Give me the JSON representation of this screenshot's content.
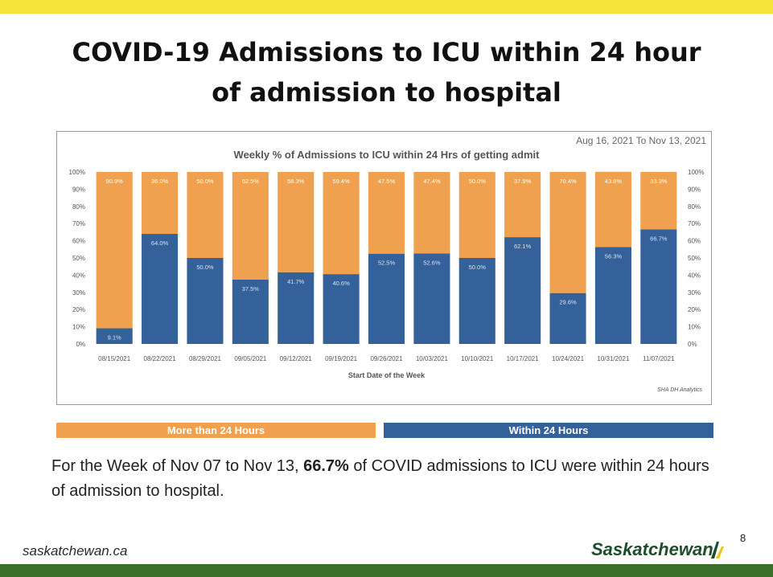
{
  "colors": {
    "top_bar": "#f5e23a",
    "bottom_bar": "#3a6f2a",
    "more_than_24": "#f0a150",
    "within_24": "#35619a",
    "logo_green": "#1e4d2b",
    "logo_mark_yellow": "#f0c419"
  },
  "slide": {
    "title_line1": "COVID-19 Admissions to ICU within 24 hour",
    "title_line2": "of admission to hospital",
    "legend_more_label": "More than 24 Hours",
    "legend_within_label": "Within 24 Hours",
    "summary_before": "For the Week of Nov 07 to Nov 13, ",
    "summary_highlight": "66.7%",
    "summary_after": " of COVID admissions to ICU were within 24 hours of admission to hospital.",
    "footer_url": "saskatchewan.ca",
    "footer_logo": "Saskatchewan",
    "page_number": "8"
  },
  "chart_data": {
    "type": "bar",
    "stacked": true,
    "title": "Weekly % of Admissions to ICU within 24 Hrs of getting admit",
    "date_range": "Aug 16, 2021 To Nov 13, 2021",
    "xlabel": "Start Date of the Week",
    "source": "SHA DH Analytics",
    "ylim": [
      0,
      100
    ],
    "y_ticks": [
      "0%",
      "10%",
      "20%",
      "30%",
      "40%",
      "50%",
      "60%",
      "70%",
      "80%",
      "90%",
      "100%"
    ],
    "categories": [
      "08/15/2021",
      "08/22/2021",
      "08/29/2021",
      "09/05/2021",
      "09/12/2021",
      "09/19/2021",
      "09/26/2021",
      "10/03/2021",
      "10/10/2021",
      "10/17/2021",
      "10/24/2021",
      "10/31/2021",
      "11/07/2021"
    ],
    "series": [
      {
        "name": "Within 24 Hours",
        "color": "#35619a",
        "values": [
          9.1,
          64.0,
          50.0,
          37.5,
          41.7,
          40.6,
          52.5,
          52.6,
          50.0,
          62.1,
          29.6,
          56.3,
          66.7
        ],
        "labels": [
          "9.1%",
          "64.0%",
          "50.0%",
          "37.5%",
          "41.7%",
          "40.6%",
          "52.5%",
          "52.6%",
          "50.0%",
          "62.1%",
          "29.6%",
          "56.3%",
          "66.7%"
        ]
      },
      {
        "name": "More than 24 Hours",
        "color": "#f0a150",
        "values": [
          90.9,
          36.0,
          50.0,
          62.5,
          58.3,
          59.4,
          47.5,
          47.4,
          50.0,
          37.9,
          70.4,
          43.8,
          33.3
        ],
        "labels": [
          "90.9%",
          "36.0%",
          "50.0%",
          "62.5%",
          "58.3%",
          "59.4%",
          "47.5%",
          "47.4%",
          "50.0%",
          "37.9%",
          "70.4%",
          "43.8%",
          "33.3%"
        ]
      }
    ]
  }
}
